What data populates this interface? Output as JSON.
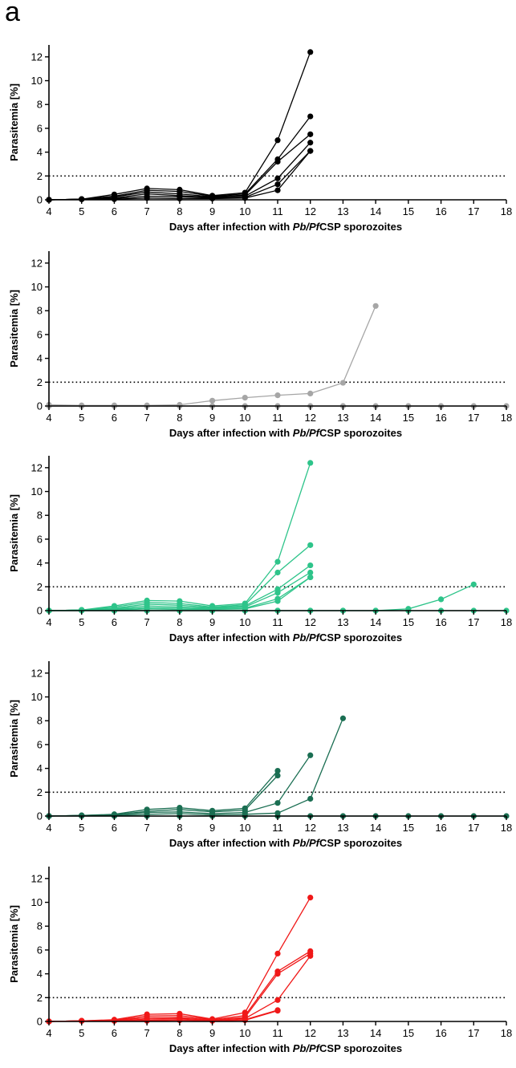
{
  "panel_label": "a",
  "chart_data": [
    {
      "type": "line",
      "color": "#000000",
      "xlabel_parts": [
        {
          "text": "Days after infection with ",
          "italic": false
        },
        {
          "text": "Pb/Pf",
          "italic": true
        },
        {
          "text": "CSP sporozoites",
          "italic": false
        }
      ],
      "ylabel": "Parasitemia [%]",
      "xlim": [
        4,
        18
      ],
      "ylim": [
        0,
        13
      ],
      "xticks": [
        "4",
        "5",
        "6",
        "7",
        "8",
        "9",
        "10",
        "11",
        "12",
        "13",
        "14",
        "15",
        "16",
        "17",
        "18"
      ],
      "yticks": [
        "0",
        "2",
        "4",
        "6",
        "8",
        "10",
        "12"
      ],
      "threshold": 2,
      "series": [
        {
          "x": [
            4,
            5,
            6,
            7,
            8,
            9,
            10,
            11,
            12
          ],
          "values": [
            0,
            0.05,
            0.45,
            0.95,
            0.85,
            0.35,
            0.6,
            5.0,
            12.4
          ]
        },
        {
          "x": [
            4,
            5,
            6,
            7,
            8,
            9,
            10,
            11,
            12
          ],
          "values": [
            0,
            0.05,
            0.3,
            0.8,
            0.7,
            0.3,
            0.5,
            3.4,
            7.0
          ]
        },
        {
          "x": [
            4,
            5,
            6,
            7,
            8,
            9,
            10,
            11,
            12
          ],
          "values": [
            0,
            0.05,
            0.25,
            0.65,
            0.5,
            0.25,
            0.4,
            3.2,
            5.5
          ]
        },
        {
          "x": [
            4,
            5,
            6,
            7,
            8,
            9,
            10,
            11,
            12
          ],
          "values": [
            0,
            0.05,
            0.15,
            0.5,
            0.35,
            0.2,
            0.3,
            1.8,
            4.8
          ]
        },
        {
          "x": [
            4,
            5,
            6,
            7,
            8,
            9,
            10,
            11,
            12
          ],
          "values": [
            0,
            0.05,
            0.1,
            0.3,
            0.25,
            0.15,
            0.2,
            1.3,
            4.1
          ]
        },
        {
          "x": [
            4,
            5,
            6,
            7,
            8,
            9,
            10,
            11,
            12
          ],
          "values": [
            0,
            0.05,
            0.05,
            0.15,
            0.1,
            0.1,
            0.15,
            0.8,
            4.1
          ]
        }
      ]
    },
    {
      "type": "line",
      "color": "#a6a6a6",
      "xlabel_parts": [
        {
          "text": "Days after infection with ",
          "italic": false
        },
        {
          "text": "Pb/Pf",
          "italic": true
        },
        {
          "text": "CSP sporozoites",
          "italic": false
        }
      ],
      "ylabel": "Parasitemia [%]",
      "xlim": [
        4,
        18
      ],
      "ylim": [
        0,
        13
      ],
      "xticks": [
        "4",
        "5",
        "6",
        "7",
        "8",
        "9",
        "10",
        "11",
        "12",
        "13",
        "14",
        "15",
        "16",
        "17",
        "18"
      ],
      "yticks": [
        "0",
        "2",
        "4",
        "6",
        "8",
        "10",
        "12"
      ],
      "threshold": 2,
      "series": [
        {
          "x": [
            4,
            5,
            6,
            7,
            8,
            9,
            10,
            11,
            12,
            13,
            14
          ],
          "values": [
            0.1,
            0.05,
            0.05,
            0.05,
            0.1,
            0.45,
            0.7,
            0.9,
            1.05,
            1.95,
            8.4
          ]
        },
        {
          "x": [
            4,
            5,
            6,
            7,
            8,
            9,
            10,
            11,
            12,
            13,
            14,
            15,
            16,
            17,
            18
          ],
          "values": [
            0,
            0,
            0,
            0,
            0,
            0,
            0,
            0,
            0,
            0,
            0,
            0,
            0,
            0,
            0
          ]
        }
      ]
    },
    {
      "type": "line",
      "color": "#2ec48a",
      "xlabel_parts": [
        {
          "text": "Days after infection with ",
          "italic": false
        },
        {
          "text": "Pb/Pf",
          "italic": true
        },
        {
          "text": "CSP sporozoites",
          "italic": false
        }
      ],
      "ylabel": "Parasitemia [%]",
      "xlim": [
        4,
        18
      ],
      "ylim": [
        0,
        13
      ],
      "xticks": [
        "4",
        "5",
        "6",
        "7",
        "8",
        "9",
        "10",
        "11",
        "12",
        "13",
        "14",
        "15",
        "16",
        "17",
        "18"
      ],
      "yticks": [
        "0",
        "2",
        "4",
        "6",
        "8",
        "10",
        "12"
      ],
      "threshold": 2,
      "series": [
        {
          "x": [
            4,
            5,
            6,
            7,
            8,
            9,
            10,
            11,
            12
          ],
          "values": [
            0,
            0.05,
            0.4,
            0.85,
            0.8,
            0.4,
            0.6,
            4.1,
            12.4
          ]
        },
        {
          "x": [
            4,
            5,
            6,
            7,
            8,
            9,
            10,
            11,
            12
          ],
          "values": [
            0,
            0.05,
            0.3,
            0.7,
            0.6,
            0.3,
            0.5,
            3.2,
            5.5
          ]
        },
        {
          "x": [
            4,
            5,
            6,
            7,
            8,
            9,
            10,
            11,
            12
          ],
          "values": [
            0,
            0.05,
            0.2,
            0.55,
            0.45,
            0.25,
            0.4,
            1.8,
            3.8
          ]
        },
        {
          "x": [
            4,
            5,
            6,
            7,
            8,
            9,
            10,
            11,
            12
          ],
          "values": [
            0,
            0.05,
            0.15,
            0.4,
            0.3,
            0.2,
            0.3,
            1.5,
            3.2
          ]
        },
        {
          "x": [
            4,
            5,
            6,
            7,
            8,
            9,
            10,
            11,
            12
          ],
          "values": [
            0,
            0.05,
            0.1,
            0.25,
            0.2,
            0.15,
            0.2,
            1.0,
            2.8
          ]
        },
        {
          "x": [
            4,
            5,
            6,
            7,
            8,
            9,
            10,
            11,
            12
          ],
          "values": [
            0,
            0.05,
            0.05,
            0.15,
            0.1,
            0.1,
            0.15,
            0.8,
            2.8
          ]
        },
        {
          "x": [
            4,
            5,
            6,
            7,
            8,
            9,
            10,
            11,
            12,
            13,
            14,
            15,
            16,
            17
          ],
          "values": [
            0,
            0,
            0,
            0,
            0,
            0,
            0,
            0,
            0,
            0,
            0,
            0.15,
            0.95,
            2.2
          ]
        },
        {
          "x": [
            4,
            5,
            6,
            7,
            8,
            9,
            10,
            11,
            12,
            13,
            14,
            15,
            16,
            17,
            18
          ],
          "values": [
            0,
            0,
            0,
            0,
            0,
            0,
            0,
            0,
            0,
            0,
            0,
            0,
            0,
            0,
            0
          ]
        }
      ]
    },
    {
      "type": "line",
      "color": "#1a6e52",
      "xlabel_parts": [
        {
          "text": "Days after infection with ",
          "italic": false
        },
        {
          "text": "Pb/Pf",
          "italic": true
        },
        {
          "text": "CSP sporozoites",
          "italic": false
        }
      ],
      "ylabel": "Parasitemia [%]",
      "xlim": [
        4,
        18
      ],
      "ylim": [
        0,
        13
      ],
      "xticks": [
        "4",
        "5",
        "6",
        "7",
        "8",
        "9",
        "10",
        "11",
        "12",
        "13",
        "14",
        "15",
        "16",
        "17",
        "18"
      ],
      "yticks": [
        "0",
        "2",
        "4",
        "6",
        "8",
        "10",
        "12"
      ],
      "threshold": 2,
      "series": [
        {
          "x": [
            4,
            5,
            6,
            7,
            8,
            9,
            10,
            11
          ],
          "values": [
            0,
            0.05,
            0.15,
            0.55,
            0.7,
            0.45,
            0.65,
            3.8
          ]
        },
        {
          "x": [
            4,
            5,
            6,
            7,
            8,
            9,
            10,
            11
          ],
          "values": [
            0,
            0.05,
            0.1,
            0.4,
            0.55,
            0.35,
            0.5,
            3.4
          ]
        },
        {
          "x": [
            4,
            5,
            6,
            7,
            8,
            9,
            10,
            11,
            12
          ],
          "values": [
            0,
            0.05,
            0.1,
            0.3,
            0.35,
            0.2,
            0.3,
            1.1,
            5.1
          ]
        },
        {
          "x": [
            4,
            5,
            6,
            7,
            8,
            9,
            10,
            11,
            12,
            13
          ],
          "values": [
            0,
            0.05,
            0.05,
            0.15,
            0.2,
            0.1,
            0.15,
            0.25,
            1.45,
            8.2
          ]
        },
        {
          "x": [
            4,
            5,
            6,
            7,
            8,
            9,
            10,
            11,
            12,
            13,
            14,
            15,
            16,
            17,
            18
          ],
          "values": [
            0,
            0,
            0,
            0,
            0,
            0,
            0,
            0,
            0,
            0,
            0,
            0,
            0,
            0,
            0
          ]
        }
      ]
    },
    {
      "type": "line",
      "color": "#f01818",
      "xlabel_parts": [
        {
          "text": "Days after infection with ",
          "italic": false
        },
        {
          "text": "Pb/Pf",
          "italic": true
        },
        {
          "text": "CSP sporozoites",
          "italic": false
        }
      ],
      "ylabel": "Parasitemia [%]",
      "xlim": [
        4,
        18
      ],
      "ylim": [
        0,
        13
      ],
      "xticks": [
        "4",
        "5",
        "6",
        "7",
        "8",
        "9",
        "10",
        "11",
        "12",
        "13",
        "14",
        "15",
        "16",
        "17",
        "18"
      ],
      "yticks": [
        "0",
        "2",
        "4",
        "6",
        "8",
        "10",
        "12"
      ],
      "threshold": 2,
      "series": [
        {
          "x": [
            4,
            5,
            6,
            7,
            8,
            9,
            10,
            11,
            12
          ],
          "values": [
            0,
            0.05,
            0.15,
            0.6,
            0.65,
            0.2,
            0.75,
            5.7,
            10.4
          ]
        },
        {
          "x": [
            4,
            5,
            6,
            7,
            8,
            9,
            10,
            11,
            12
          ],
          "values": [
            0,
            0.05,
            0.1,
            0.45,
            0.5,
            0.15,
            0.5,
            4.2,
            5.9
          ]
        },
        {
          "x": [
            4,
            5,
            6,
            7,
            8,
            9,
            10,
            11,
            12
          ],
          "values": [
            0,
            0.05,
            0.1,
            0.3,
            0.35,
            0.1,
            0.35,
            4.0,
            5.7
          ]
        },
        {
          "x": [
            4,
            5,
            6,
            7,
            8,
            9,
            10,
            11,
            12
          ],
          "values": [
            0,
            0.05,
            0.05,
            0.2,
            0.25,
            0.1,
            0.25,
            1.8,
            5.5
          ]
        },
        {
          "x": [
            4,
            5,
            6,
            7,
            8,
            9,
            10,
            11
          ],
          "values": [
            0,
            0.05,
            0.05,
            0.1,
            0.15,
            0.05,
            0.15,
            0.95
          ]
        },
        {
          "x": [
            4,
            5,
            6,
            7,
            8,
            9,
            10,
            11
          ],
          "values": [
            0,
            0.05,
            0.05,
            0.05,
            0.1,
            0.05,
            0.1,
            0.9
          ]
        }
      ]
    }
  ]
}
